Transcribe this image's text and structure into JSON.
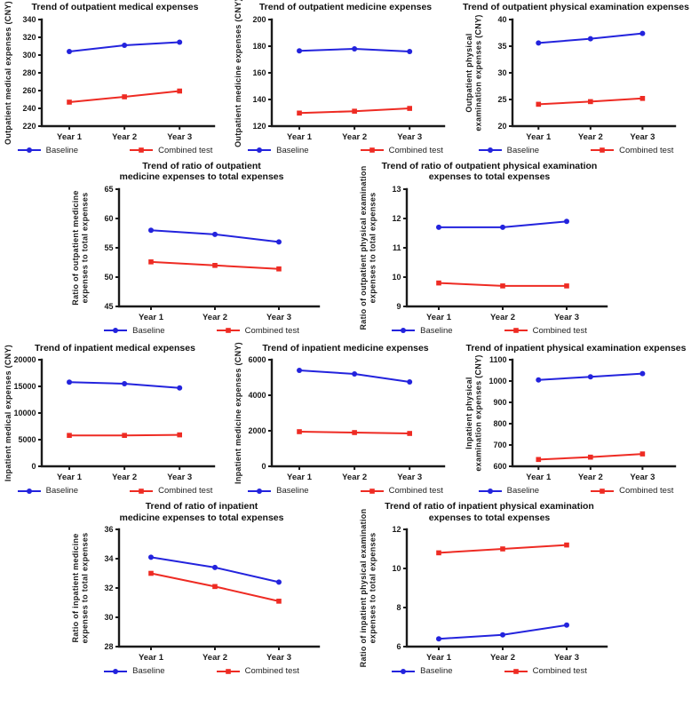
{
  "figure": {
    "description": "Trends of medical expenses over three years, baseline vs combined test"
  },
  "categories": [
    "Year 1",
    "Year 2",
    "Year 3"
  ],
  "colors": {
    "baseline": "#2323dd",
    "combined": "#ee2b23",
    "axis": "#1a1a1a"
  },
  "legend": {
    "baseline_label": "Baseline",
    "combined_label": "Combined test"
  },
  "chart_data": [
    {
      "type": "line",
      "wide": false,
      "title": [
        "Trend of outpatient medical expenses"
      ],
      "ylabel": [
        "Outpatient medical expenses (CNY)"
      ],
      "ylim": [
        220,
        340
      ],
      "ystep": 20,
      "categories": [
        "Year 1",
        "Year 2",
        "Year 3"
      ],
      "series": [
        {
          "name": "Baseline",
          "color": "#2323dd",
          "marker": "circle",
          "values": [
            304,
            311,
            314.5
          ]
        },
        {
          "name": "Combined test",
          "color": "#ee2b23",
          "marker": "square",
          "values": [
            247,
            253,
            259.5
          ]
        }
      ]
    },
    {
      "type": "line",
      "wide": false,
      "title": [
        "Trend of outpatient medicine expenses"
      ],
      "ylabel": [
        "Outpatient medicine expenses (CNY)"
      ],
      "ylim": [
        120,
        200
      ],
      "ystep": 20,
      "categories": [
        "Year 1",
        "Year 2",
        "Year 3"
      ],
      "series": [
        {
          "name": "Baseline",
          "color": "#2323dd",
          "marker": "circle",
          "values": [
            176.5,
            178,
            176
          ]
        },
        {
          "name": "Combined test",
          "color": "#ee2b23",
          "marker": "square",
          "values": [
            129.8,
            131.2,
            133.3
          ]
        }
      ]
    },
    {
      "type": "line",
      "wide": false,
      "title": [
        "Trend of outpatient physical examination expenses"
      ],
      "ylabel": [
        "Outpatient physical",
        "examination expenses (CNY)"
      ],
      "ylim": [
        20,
        40
      ],
      "ystep": 5,
      "categories": [
        "Year 1",
        "Year 2",
        "Year 3"
      ],
      "series": [
        {
          "name": "Baseline",
          "color": "#2323dd",
          "marker": "circle",
          "values": [
            35.6,
            36.4,
            37.4
          ]
        },
        {
          "name": "Combined test",
          "color": "#ee2b23",
          "marker": "square",
          "values": [
            24.1,
            24.6,
            25.2
          ]
        }
      ]
    },
    {
      "type": "line",
      "wide": true,
      "title": [
        "Trend of ratio of outpatient",
        "medicine expenses to total expenses"
      ],
      "ylabel": [
        "Ratio of outpatient medicine",
        "expenses to total expenses"
      ],
      "ylim": [
        45,
        65
      ],
      "ystep": 5,
      "categories": [
        "Year 1",
        "Year 2",
        "Year 3"
      ],
      "series": [
        {
          "name": "Baseline",
          "color": "#2323dd",
          "marker": "circle",
          "values": [
            58,
            57.3,
            56
          ]
        },
        {
          "name": "Combined test",
          "color": "#ee2b23",
          "marker": "square",
          "values": [
            52.6,
            52,
            51.4
          ]
        }
      ]
    },
    {
      "type": "line",
      "wide": true,
      "title": [
        "Trend of ratio of outpatient physical examination",
        "expenses to total expenses"
      ],
      "ylabel": [
        "Ratio of outpatient physical examination",
        "expenses to total expenses"
      ],
      "ylim": [
        9,
        13
      ],
      "ystep": 1,
      "categories": [
        "Year 1",
        "Year 2",
        "Year 3"
      ],
      "series": [
        {
          "name": "Baseline",
          "color": "#2323dd",
          "marker": "circle",
          "values": [
            11.7,
            11.7,
            11.9
          ]
        },
        {
          "name": "Combined test",
          "color": "#ee2b23",
          "marker": "square",
          "values": [
            9.8,
            9.7,
            9.7
          ]
        }
      ]
    },
    {
      "type": "line",
      "wide": false,
      "title": [
        "Trend of inpatient medical expenses"
      ],
      "ylabel": [
        "Inpatient medical expenses (CNY)"
      ],
      "ylim": [
        0,
        20000
      ],
      "ystep": 5000,
      "categories": [
        "Year 1",
        "Year 2",
        "Year 3"
      ],
      "series": [
        {
          "name": "Baseline",
          "color": "#2323dd",
          "marker": "circle",
          "values": [
            15800,
            15500,
            14700
          ]
        },
        {
          "name": "Combined test",
          "color": "#ee2b23",
          "marker": "square",
          "values": [
            5800,
            5800,
            5900
          ]
        }
      ]
    },
    {
      "type": "line",
      "wide": false,
      "title": [
        "Trend of inpatient medicine expenses"
      ],
      "ylabel": [
        "Inpatient medicine expenses (CNY)"
      ],
      "ylim": [
        0,
        6000
      ],
      "ystep": 2000,
      "categories": [
        "Year 1",
        "Year 2",
        "Year 3"
      ],
      "series": [
        {
          "name": "Baseline",
          "color": "#2323dd",
          "marker": "circle",
          "values": [
            5400,
            5200,
            4750
          ]
        },
        {
          "name": "Combined test",
          "color": "#ee2b23",
          "marker": "square",
          "values": [
            1950,
            1900,
            1850
          ]
        }
      ]
    },
    {
      "type": "line",
      "wide": false,
      "title": [
        "Trend of inpatient physical examination expenses"
      ],
      "ylabel": [
        "Inpatient physical",
        "examination expenses (CNY)"
      ],
      "ylim": [
        600,
        1100
      ],
      "ystep": 100,
      "categories": [
        "Year 1",
        "Year 2",
        "Year 3"
      ],
      "series": [
        {
          "name": "Baseline",
          "color": "#2323dd",
          "marker": "circle",
          "values": [
            1005,
            1020,
            1035
          ]
        },
        {
          "name": "Combined test",
          "color": "#ee2b23",
          "marker": "square",
          "values": [
            632,
            643,
            658
          ]
        }
      ]
    },
    {
      "type": "line",
      "wide": true,
      "title": [
        "Trend of ratio of inpatient",
        "medicine expenses to total expenses"
      ],
      "ylabel": [
        "Ratio of inpatient medicine",
        "expenses to total expenses"
      ],
      "ylim": [
        28,
        36
      ],
      "ystep": 2,
      "categories": [
        "Year 1",
        "Year 2",
        "Year 3"
      ],
      "series": [
        {
          "name": "Baseline",
          "color": "#2323dd",
          "marker": "circle",
          "values": [
            34.1,
            33.4,
            32.4
          ]
        },
        {
          "name": "Combined test",
          "color": "#ee2b23",
          "marker": "square",
          "values": [
            33,
            32.1,
            31.1
          ]
        }
      ]
    },
    {
      "type": "line",
      "wide": true,
      "title": [
        "Trend of ratio of inpatient physical examination",
        "expenses to total expenses"
      ],
      "ylabel": [
        "Ratio of inpatient physical examination",
        "expenses to total expenses"
      ],
      "ylim": [
        6,
        12
      ],
      "ystep": 2,
      "categories": [
        "Year 1",
        "Year 2",
        "Year 3"
      ],
      "series": [
        {
          "name": "Baseline",
          "color": "#2323dd",
          "marker": "circle",
          "values": [
            6.4,
            6.6,
            7.1
          ]
        },
        {
          "name": "Combined test",
          "color": "#ee2b23",
          "marker": "square",
          "values": [
            10.8,
            11,
            11.2
          ]
        }
      ]
    }
  ]
}
